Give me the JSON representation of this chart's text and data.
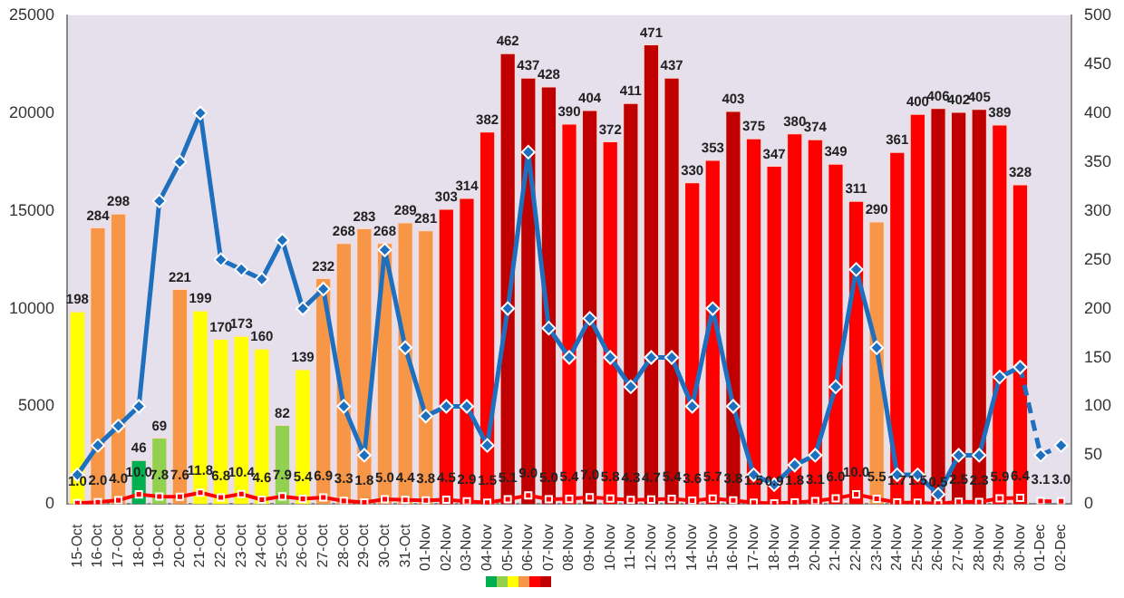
{
  "chart_data": {
    "type": "bar",
    "categories": [
      "15-Oct",
      "16-Oct",
      "17-Oct",
      "18-Oct",
      "19-Oct",
      "20-Oct",
      "21-Oct",
      "22-Oct",
      "23-Oct",
      "24-Oct",
      "25-Oct",
      "26-Oct",
      "27-Oct",
      "28-Oct",
      "29-Oct",
      "30-Oct",
      "31-Oct",
      "01-Nov",
      "02-Nov",
      "03-Nov",
      "04-Nov",
      "05-Nov",
      "06-Nov",
      "07-Nov",
      "08-Nov",
      "09-Nov",
      "10-Nov",
      "11-Nov",
      "12-Nov",
      "13-Nov",
      "14-Nov",
      "15-Nov",
      "16-Nov",
      "17-Nov",
      "18-Nov",
      "19-Nov",
      "20-Nov",
      "21-Nov",
      "22-Nov",
      "23-Nov",
      "24-Nov",
      "25-Nov",
      "26-Nov",
      "27-Nov",
      "28-Nov",
      "29-Nov",
      "30-Nov",
      "01-Dec",
      "02-Dec"
    ],
    "series": [
      {
        "axis": "y2",
        "data_labels": true,
        "values": [
          198,
          284,
          298,
          46,
          69,
          221,
          199,
          170,
          173,
          160,
          82,
          139,
          232,
          268,
          283,
          268,
          289,
          281,
          303,
          314,
          382,
          462,
          437,
          428,
          390,
          404,
          372,
          411,
          471,
          437,
          330,
          353,
          403,
          375,
          347,
          380,
          374,
          349,
          311,
          290,
          361,
          400,
          406,
          402,
          405,
          389,
          328,
          null,
          null
        ],
        "colors": [
          "#ffff00",
          "#f79646",
          "#f79646",
          "#00b050",
          "#92d050",
          "#f79646",
          "#ffff00",
          "#ffff00",
          "#ffff00",
          "#ffff00",
          "#92d050",
          "#ffff00",
          "#f79646",
          "#f79646",
          "#f79646",
          "#f79646",
          "#f79646",
          "#f79646",
          "#ff0000",
          "#ff0000",
          "#ff0000",
          "#c00000",
          "#c00000",
          "#c00000",
          "#ff0000",
          "#c00000",
          "#ff0000",
          "#c00000",
          "#c00000",
          "#c00000",
          "#ff0000",
          "#ff0000",
          "#c00000",
          "#ff0000",
          "#ff0000",
          "#ff0000",
          "#ff0000",
          "#ff0000",
          "#ff0000",
          "#f79646",
          "#ff0000",
          "#ff0000",
          "#c00000",
          "#c00000",
          "#c00000",
          "#ff0000",
          "#ff0000",
          "#ff0000",
          "#ff0000"
        ]
      },
      {
        "type": "line",
        "axis": "y2",
        "color": "#ff0000",
        "marker": "square",
        "line_style": "solid",
        "value_labels": [
          "1.0",
          "2.0",
          "4.0",
          "10.0",
          "7.8",
          "7.6",
          "11.8",
          "6.8",
          "10.4",
          "4.6",
          "7.9",
          "5.4",
          "6.9",
          "3.3",
          "1.8",
          "5.0",
          "4.4",
          "3.8",
          "4.5",
          "2.9",
          "1.5",
          "5.1",
          "9.0",
          "5.0",
          "5.4",
          "7.0",
          "5.8",
          "4.3",
          "4.7",
          "5.4",
          "3.6",
          "5.7",
          "3.8",
          "1.5",
          "0.9",
          "1.8",
          "3.1",
          "6.0",
          "10.0",
          "5.5",
          "1.7",
          "1.5",
          "0.5",
          "2.5",
          "2.3",
          "5.9",
          "6.4",
          null,
          null
        ],
        "values": [
          1.0,
          2.0,
          4.0,
          10.0,
          7.8,
          7.6,
          11.8,
          6.8,
          10.4,
          4.6,
          7.9,
          5.4,
          6.9,
          3.3,
          1.8,
          5.0,
          4.4,
          3.8,
          4.5,
          2.9,
          1.5,
          5.1,
          9.0,
          5.0,
          5.4,
          7.0,
          5.8,
          4.3,
          4.7,
          5.4,
          3.6,
          5.7,
          3.8,
          1.5,
          0.9,
          1.8,
          3.1,
          6.0,
          10.0,
          5.5,
          1.7,
          1.5,
          0.5,
          2.5,
          2.3,
          5.9,
          6.4,
          null,
          null
        ]
      },
      {
        "type": "line",
        "axis": "y2",
        "color": "#ff0000",
        "marker": "square",
        "line_style": "dashed",
        "value_labels": [
          null,
          null,
          null,
          null,
          null,
          null,
          null,
          null,
          null,
          null,
          null,
          null,
          null,
          null,
          null,
          null,
          null,
          null,
          null,
          null,
          null,
          null,
          null,
          null,
          null,
          null,
          null,
          null,
          null,
          null,
          null,
          null,
          null,
          null,
          null,
          null,
          null,
          null,
          null,
          null,
          null,
          null,
          null,
          null,
          null,
          null,
          null,
          "3.1",
          "3.0"
        ],
        "values": [
          null,
          null,
          null,
          null,
          null,
          null,
          null,
          null,
          null,
          null,
          null,
          null,
          null,
          null,
          null,
          null,
          null,
          null,
          null,
          null,
          null,
          null,
          null,
          null,
          null,
          null,
          null,
          null,
          null,
          null,
          null,
          null,
          null,
          null,
          null,
          null,
          null,
          null,
          null,
          null,
          null,
          null,
          null,
          null,
          null,
          null,
          null,
          3.1,
          3.0
        ]
      },
      {
        "type": "line",
        "axis": "y",
        "color": "#1f6fbf",
        "marker": "diamond",
        "line_style": "solid",
        "values": [
          1500,
          3000,
          4000,
          5000,
          15500,
          17500,
          20000,
          12500,
          12000,
          11500,
          13500,
          10000,
          11000,
          5000,
          2500,
          13000,
          8000,
          4500,
          5000,
          5000,
          3000,
          10000,
          18000,
          9000,
          7500,
          9500,
          7500,
          6000,
          7500,
          7500,
          5000,
          10000,
          5000,
          1500,
          1000,
          2000,
          2500,
          6000,
          12000,
          8000,
          1500,
          1500,
          500,
          2500,
          2500,
          6500,
          7000,
          null,
          null
        ]
      },
      {
        "type": "line",
        "axis": "y",
        "color": "#1f6fbf",
        "marker": "diamond",
        "line_style": "dashed",
        "values": [
          null,
          null,
          null,
          null,
          null,
          null,
          null,
          null,
          null,
          null,
          null,
          null,
          null,
          null,
          null,
          null,
          null,
          null,
          null,
          null,
          null,
          null,
          null,
          null,
          null,
          null,
          null,
          null,
          null,
          null,
          null,
          null,
          null,
          null,
          null,
          null,
          null,
          null,
          null,
          null,
          null,
          null,
          null,
          null,
          null,
          null,
          7000,
          2500,
          3000
        ]
      }
    ],
    "ylim": [
      0,
      25000
    ],
    "yticks": [
      0,
      5000,
      10000,
      15000,
      20000,
      25000
    ],
    "y2lim": [
      0,
      500
    ],
    "y2ticks": [
      0,
      50,
      100,
      150,
      200,
      250,
      300,
      350,
      400,
      450,
      500
    ],
    "grid": false,
    "legend": false
  }
}
